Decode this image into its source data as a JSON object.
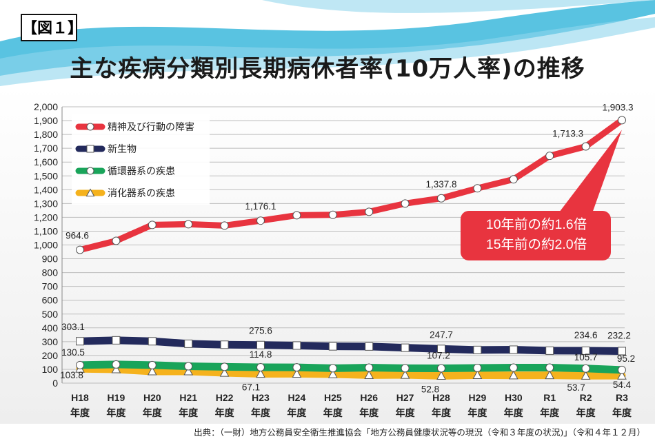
{
  "figure_tag": "【図１】",
  "title": "主な疾病分類別長期病休者率(10万人率)の推移",
  "source": "出典：（一財）地方公務員安全衛生推進協会「地方公務員健康状況等の現況（令和３年度の状況)」（令和４年１２月）",
  "callout": [
    "10年前の約1.6倍",
    "15年前の約2.0倍"
  ],
  "colors": {
    "mental": "#e8343f",
    "neoplasm": "#232a5c",
    "circulatory": "#19a45a",
    "digestive": "#f5b21d",
    "callout": "#e8343f",
    "header_wave": "#3cb8dc"
  },
  "chart_data": {
    "type": "line",
    "title": "主な疾病分類別長期病休者率(10万人率)の推移",
    "x": [
      [
        "H18",
        "年度"
      ],
      [
        "H19",
        "年度"
      ],
      [
        "H20",
        "年度"
      ],
      [
        "H21",
        "年度"
      ],
      [
        "H22",
        "年度"
      ],
      [
        "H23",
        "年度"
      ],
      [
        "H24",
        "年度"
      ],
      [
        "H25",
        "年度"
      ],
      [
        "H26",
        "年度"
      ],
      [
        "H27",
        "年度"
      ],
      [
        "H28",
        "年度"
      ],
      [
        "H29",
        "年度"
      ],
      [
        "H30",
        "年度"
      ],
      [
        "R1",
        "年度"
      ],
      [
        "R2",
        "年度"
      ],
      [
        "R3",
        "年度"
      ]
    ],
    "ylim": [
      0,
      2000
    ],
    "yticks": [
      0,
      100,
      200,
      300,
      400,
      500,
      600,
      700,
      800,
      900,
      1000,
      1100,
      1200,
      1300,
      1400,
      1500,
      1600,
      1700,
      1800,
      1900,
      2000
    ],
    "ytick_labels": [
      "0",
      "100",
      "200",
      "300",
      "400",
      "500",
      "600",
      "700",
      "800",
      "900",
      "1,000",
      "1,100",
      "1,200",
      "1,300",
      "1,400",
      "1,500",
      "1,600",
      "1,700",
      "1,800",
      "1,900",
      "2,000"
    ],
    "grid": true,
    "legend_position": "top-left",
    "series": [
      {
        "name": "精神及び行動の障害",
        "color": "#e8343f",
        "marker": "circle",
        "values": [
          964.6,
          1030,
          1145,
          1150,
          1140,
          1176.1,
          1215,
          1218,
          1240,
          1300,
          1337.8,
          1410,
          1475,
          1645,
          1713.3,
          1903.3
        ],
        "labels": [
          {
            "i": 0,
            "text": "964.6"
          },
          {
            "i": 5,
            "text": "1,176.1"
          },
          {
            "i": 10,
            "text": "1,337.8"
          },
          {
            "i": 14,
            "text": "1,713.3"
          },
          {
            "i": 15,
            "text": "1,903.3"
          }
        ]
      },
      {
        "name": "新生物",
        "color": "#232a5c",
        "marker": "square",
        "values": [
          303.1,
          310,
          303,
          285,
          278,
          275.6,
          272,
          266,
          265,
          256,
          247.7,
          240,
          242,
          235,
          234.6,
          232.2
        ],
        "labels": [
          {
            "i": 0,
            "text": "303.1"
          },
          {
            "i": 5,
            "text": "275.6"
          },
          {
            "i": 10,
            "text": "247.7"
          },
          {
            "i": 14,
            "text": "234.6"
          },
          {
            "i": 15,
            "text": "232.2"
          }
        ]
      },
      {
        "name": "循環器系の疾患",
        "color": "#19a45a",
        "marker": "circle",
        "values": [
          130.5,
          135,
          130,
          122,
          118,
          114.8,
          114,
          108,
          112,
          108,
          107.2,
          110,
          112,
          112,
          105.7,
          95.2
        ],
        "labels": [
          {
            "i": 0,
            "text": "130.5"
          },
          {
            "i": 5,
            "text": "114.8"
          },
          {
            "i": 10,
            "text": "107.2"
          },
          {
            "i": 14,
            "text": "105.7"
          },
          {
            "i": 15,
            "text": "95.2"
          }
        ]
      },
      {
        "name": "消化器系の疾患",
        "color": "#f5b21d",
        "marker": "triangle",
        "values": [
          103.8,
          100,
          85,
          85,
          75,
          67.1,
          68,
          65,
          58,
          60,
          52.8,
          58,
          56,
          57,
          53.7,
          54.4
        ],
        "labels": [
          {
            "i": 0,
            "text": "103.8"
          },
          {
            "i": 5,
            "text": "67.1"
          },
          {
            "i": 10,
            "text": "52.8"
          },
          {
            "i": 14,
            "text": "53.7"
          },
          {
            "i": 15,
            "text": "54.4"
          }
        ]
      }
    ]
  }
}
